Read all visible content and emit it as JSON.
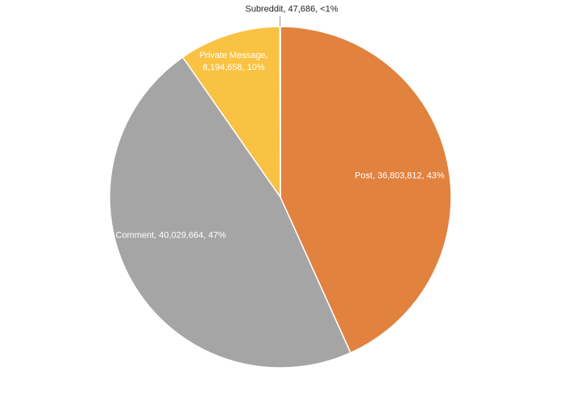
{
  "chart_data": {
    "type": "pie",
    "categories": [
      "Post",
      "Comment",
      "Private Message",
      "Subreddit"
    ],
    "values": [
      36803812,
      40029664,
      8194658,
      47686
    ],
    "value_labels": [
      "Post, 36,803,812, 43%",
      "Comment, 40,029,664, 47%",
      "Private Message, 8,194,658, 10%",
      "Subreddit, 47,686, <1%"
    ],
    "colors": [
      "#e2823f",
      "#a5a5a5",
      "#f9c242",
      "#4f81bd"
    ]
  }
}
